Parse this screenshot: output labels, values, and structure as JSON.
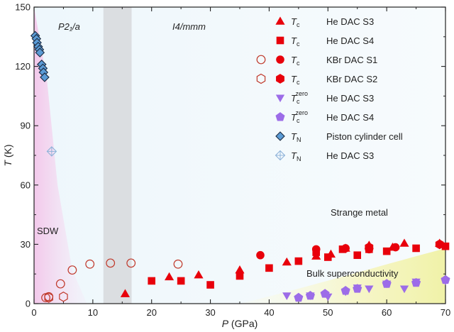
{
  "chart_data": {
    "type": "scatter",
    "xlabel": "P (GPa)",
    "ylabel": "T (K)",
    "xlim": [
      0,
      70
    ],
    "ylim": [
      0,
      150
    ],
    "xticks": [
      0,
      10,
      20,
      30,
      40,
      50,
      60,
      70
    ],
    "yticks": [
      0,
      30,
      60,
      90,
      120,
      150
    ],
    "x_tick_labels": [
      "0",
      "10",
      "20",
      "30",
      "40",
      "50",
      "60",
      "70"
    ],
    "y_tick_labels": [
      "0",
      "30",
      "60",
      "90",
      "120",
      "150"
    ],
    "phase_labels": {
      "left": "P2₁/a",
      "right": "I4/mmm"
    },
    "annotations": {
      "sdw": "SDW",
      "strange_metal": "Strange metal",
      "bulk_sc": "Bulk superconductivity"
    },
    "transition_band": [
      11.8,
      16.6
    ],
    "legend_placement": "top-right",
    "series": [
      {
        "name": "He DAC S3",
        "symbol_main": "T",
        "symbol_sub": "c",
        "marker": "triangle",
        "filled": true,
        "color": "#e8000b",
        "points": [
          [
            15.5,
            5
          ],
          [
            23,
            13.5
          ],
          [
            28,
            14.5
          ],
          [
            35,
            17
          ],
          [
            43,
            21
          ],
          [
            48,
            24
          ],
          [
            50.5,
            25
          ],
          [
            53,
            28
          ],
          [
            57,
            29.5
          ],
          [
            61,
            28.5
          ],
          [
            63,
            30.5
          ],
          [
            69,
            30.5
          ]
        ]
      },
      {
        "name": "He DAC S4",
        "symbol_main": "T",
        "symbol_sub": "c",
        "marker": "square",
        "filled": true,
        "color": "#e8000b",
        "points": [
          [
            20,
            11.5
          ],
          [
            25,
            11.5
          ],
          [
            30,
            9.5
          ],
          [
            35,
            14
          ],
          [
            40,
            18
          ],
          [
            45,
            21.5
          ],
          [
            48,
            26
          ],
          [
            50,
            23.5
          ],
          [
            52.5,
            27.5
          ],
          [
            55,
            24.5
          ],
          [
            57,
            27.5
          ],
          [
            60,
            26.5
          ],
          [
            65,
            28
          ],
          [
            70,
            29
          ]
        ]
      },
      {
        "name": "KBr DAC S1",
        "symbol_main": "T",
        "symbol_sub": "c",
        "marker": "circle",
        "filled": true,
        "color": "#e8000b",
        "points": [
          [
            38.5,
            24.5
          ],
          [
            48,
            27.5
          ],
          [
            53,
            28
          ],
          [
            57,
            27.5
          ],
          [
            61.5,
            28.5
          ]
        ]
      },
      {
        "name": "KBr DAC S2",
        "symbol_main": "T",
        "symbol_sub": "c",
        "marker": "hexagon",
        "filled": true,
        "color": "#e8000b",
        "points": [
          [
            57,
            28.5
          ],
          [
            69,
            30
          ]
        ]
      },
      {
        "name": "",
        "symbol_main": "",
        "symbol_sub": "",
        "marker": "circle",
        "filled": false,
        "color": "#c0392b",
        "points": [
          [
            2,
            3
          ],
          [
            2.5,
            3.5
          ],
          [
            4.5,
            10
          ],
          [
            6.5,
            17
          ],
          [
            9.5,
            20
          ],
          [
            13,
            20.5
          ],
          [
            16.5,
            20.5
          ],
          [
            24.5,
            20
          ]
        ]
      },
      {
        "name": "",
        "symbol_main": "",
        "symbol_sub": "",
        "marker": "hexagon",
        "filled": false,
        "color": "#c0392b",
        "points": [
          [
            2.5,
            3
          ],
          [
            5,
            3.5
          ]
        ]
      },
      {
        "name": "He DAC S3",
        "symbol_main": "T",
        "symbol_sub": "c",
        "symbol_sup": "zero",
        "marker": "triangle-down",
        "filled": true,
        "color": "#9c6ce8",
        "points": [
          [
            43,
            4
          ],
          [
            47,
            4
          ],
          [
            50,
            3.5
          ],
          [
            53,
            6
          ],
          [
            55,
            8
          ],
          [
            57,
            7.5
          ],
          [
            60,
            10
          ],
          [
            63,
            7.5
          ],
          [
            65,
            11
          ],
          [
            70,
            11.5
          ]
        ]
      },
      {
        "name": "He DAC S4",
        "symbol_main": "T",
        "symbol_sub": "c",
        "symbol_sup": "zero",
        "marker": "pentagon",
        "filled": true,
        "color": "#9c6ce8",
        "points": [
          [
            45,
            3
          ],
          [
            47,
            4
          ],
          [
            49.5,
            5
          ],
          [
            53,
            6.5
          ],
          [
            55,
            7.5
          ],
          [
            60,
            10
          ],
          [
            65,
            10.5
          ],
          [
            70,
            12
          ]
        ]
      },
      {
        "name": "Piston cylinder cell",
        "symbol_main": "T",
        "symbol_sub": "N",
        "marker": "diamond",
        "filled": true,
        "color": "#5b9bd5",
        "points": [
          [
            0.2,
            135.5
          ],
          [
            0.4,
            134
          ],
          [
            0.5,
            132
          ],
          [
            0.7,
            130
          ],
          [
            0.9,
            128.5
          ],
          [
            1.0,
            127
          ],
          [
            1.3,
            121
          ],
          [
            1.5,
            119
          ],
          [
            1.6,
            117
          ],
          [
            1.8,
            114.5
          ]
        ]
      },
      {
        "name": "He DAC S3",
        "symbol_main": "T",
        "symbol_sub": "N",
        "marker": "diamond-cross",
        "filled": false,
        "color": "#8fb3d9",
        "points": [
          [
            3,
            77
          ]
        ]
      }
    ]
  }
}
